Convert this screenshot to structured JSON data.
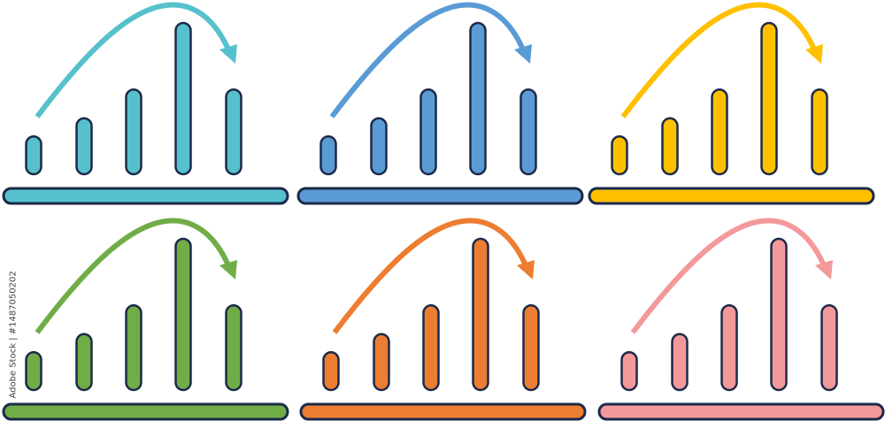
{
  "outline_color": "#1b2a4a",
  "bar_levels": [
    0.25,
    0.37,
    0.56,
    1.0,
    0.56
  ],
  "icons": [
    {
      "name": "teal",
      "color": "#56c1cc"
    },
    {
      "name": "blue",
      "color": "#5b9bd5"
    },
    {
      "name": "yellow",
      "color": "#ffc000"
    },
    {
      "name": "green",
      "color": "#70ad47"
    },
    {
      "name": "orange",
      "color": "#ed7d31"
    },
    {
      "name": "pink",
      "color": "#f4999b"
    }
  ],
  "watermark": "Adobe Stock | #1487050202"
}
